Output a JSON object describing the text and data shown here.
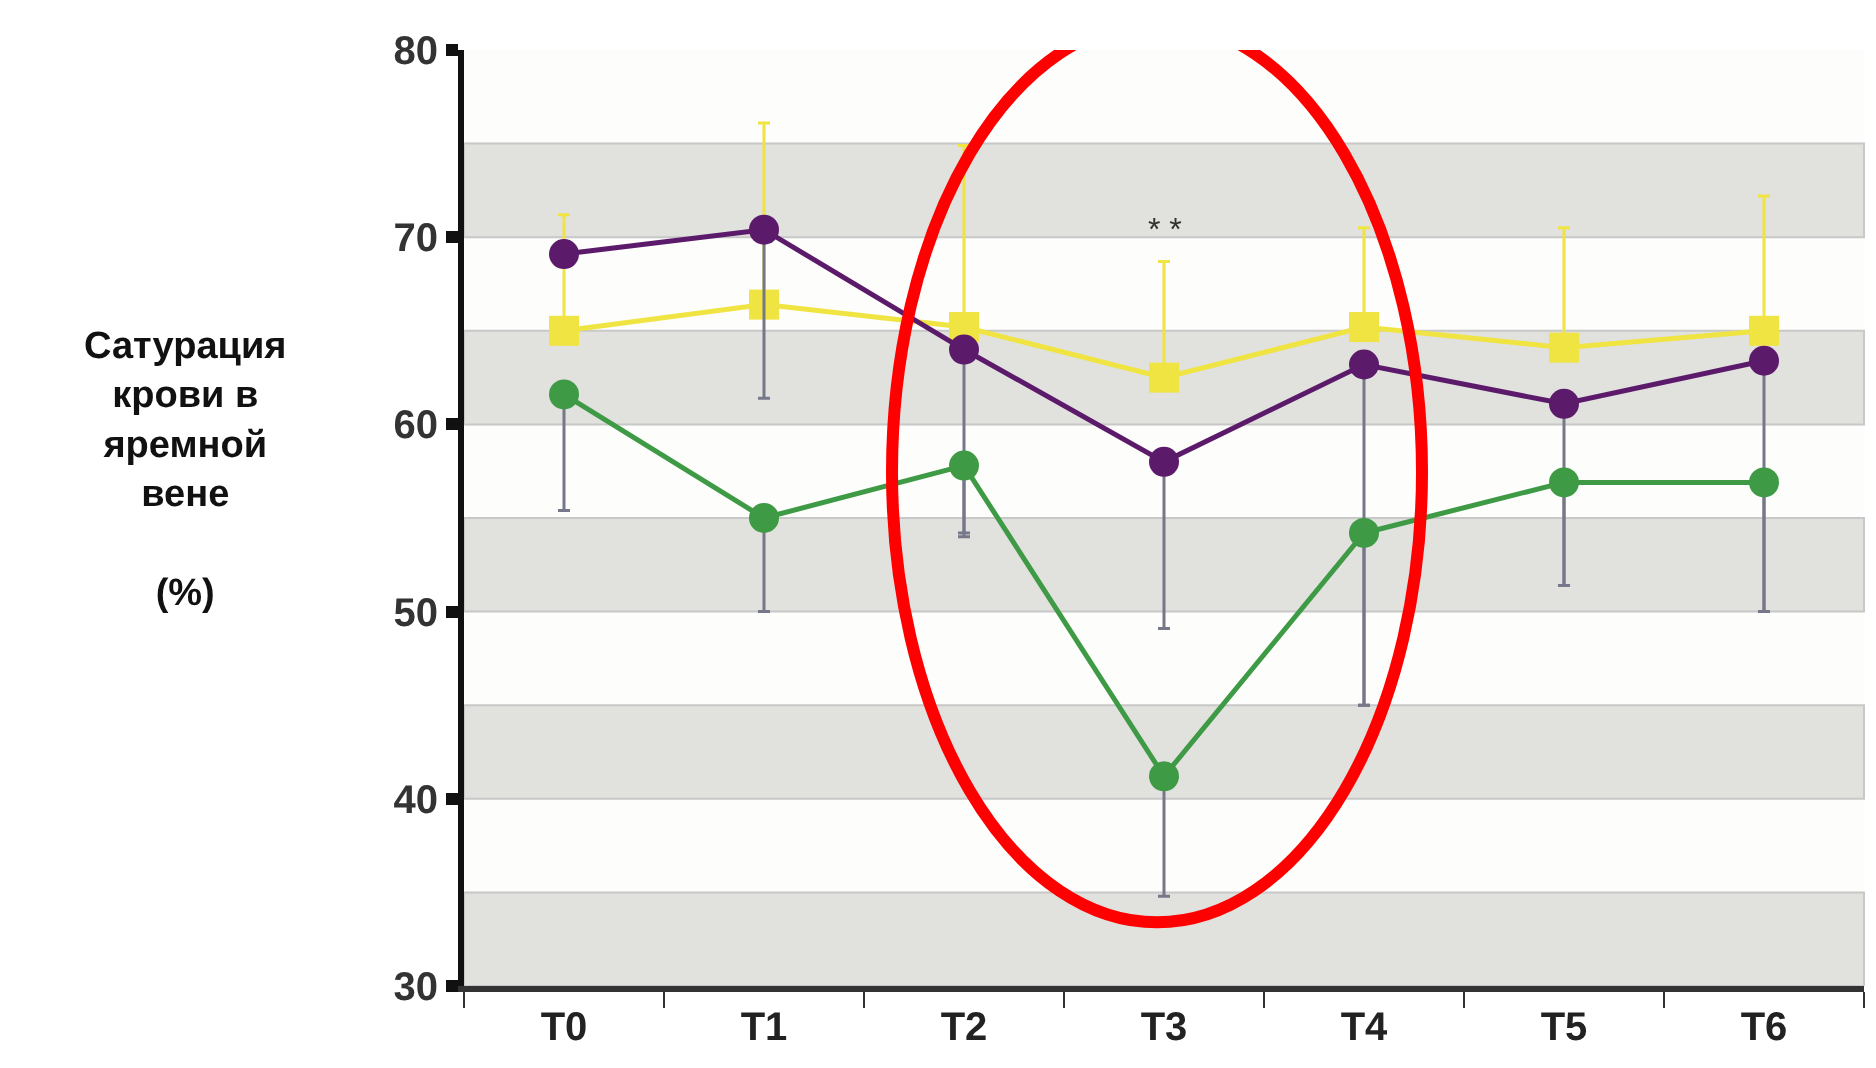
{
  "chart_data": {
    "type": "line",
    "ylabel": "Сатурация\nкрови в\nяремной\nвене\n\n(%)",
    "categories": [
      "T0",
      "T1",
      "T2",
      "T3",
      "T4",
      "T5",
      "T6"
    ],
    "series": [
      {
        "color": "#f0e442",
        "marker": "square",
        "values": [
          65.0,
          66.4,
          65.2,
          62.5,
          65.2,
          64.1,
          65.0
        ],
        "errors": [
          [
            65.0,
            71.2
          ],
          [
            66.4,
            76.1
          ],
          [
            65.2,
            74.9
          ],
          [
            62.5,
            68.7
          ],
          [
            65.2,
            70.5
          ],
          [
            64.1,
            70.5
          ],
          [
            65.0,
            72.2
          ]
        ]
      },
      {
        "color": "#5c1a6b",
        "marker": "circle",
        "values": [
          69.1,
          70.4,
          64.0,
          58.0,
          63.2,
          61.1,
          63.4
        ],
        "errors": [
          null,
          [
            61.4,
            70.4
          ],
          [
            54.0,
            64.0
          ],
          [
            49.1,
            58.0
          ],
          [
            45.0,
            63.2
          ],
          [
            51.4,
            61.1
          ],
          [
            50.0,
            63.4
          ]
        ]
      },
      {
        "color": "#3e9a45",
        "marker": "circle",
        "values": [
          61.6,
          55.0,
          57.8,
          41.2,
          54.2,
          56.9,
          56.9
        ],
        "errors": [
          [
            55.4,
            61.6
          ],
          [
            50.0,
            55.0
          ],
          [
            54.2,
            57.8
          ],
          [
            34.8,
            41.2
          ],
          [
            45.0,
            54.2
          ],
          [
            51.4,
            56.9
          ],
          [
            50.0,
            56.9
          ]
        ]
      }
    ],
    "ylim": [
      30,
      80
    ],
    "yticks": [
      30,
      40,
      50,
      60,
      70,
      80
    ],
    "bands": [
      {
        "axis": "y",
        "from": 70,
        "to": 75,
        "color": "#e1e1de"
      },
      {
        "axis": "y",
        "from": 60,
        "to": 65,
        "color": "#e1e1de"
      },
      {
        "axis": "y",
        "from": 50,
        "to": 55,
        "color": "#e1e1de"
      },
      {
        "axis": "y",
        "from": 40,
        "to": 45,
        "color": "#e1e1de"
      },
      {
        "axis": "y",
        "from": 30,
        "to": 35,
        "color": "#e1e1de"
      }
    ],
    "annotations": [
      {
        "text": "* *",
        "x": "T3",
        "y": 70.3
      }
    ],
    "grid": false
  }
}
